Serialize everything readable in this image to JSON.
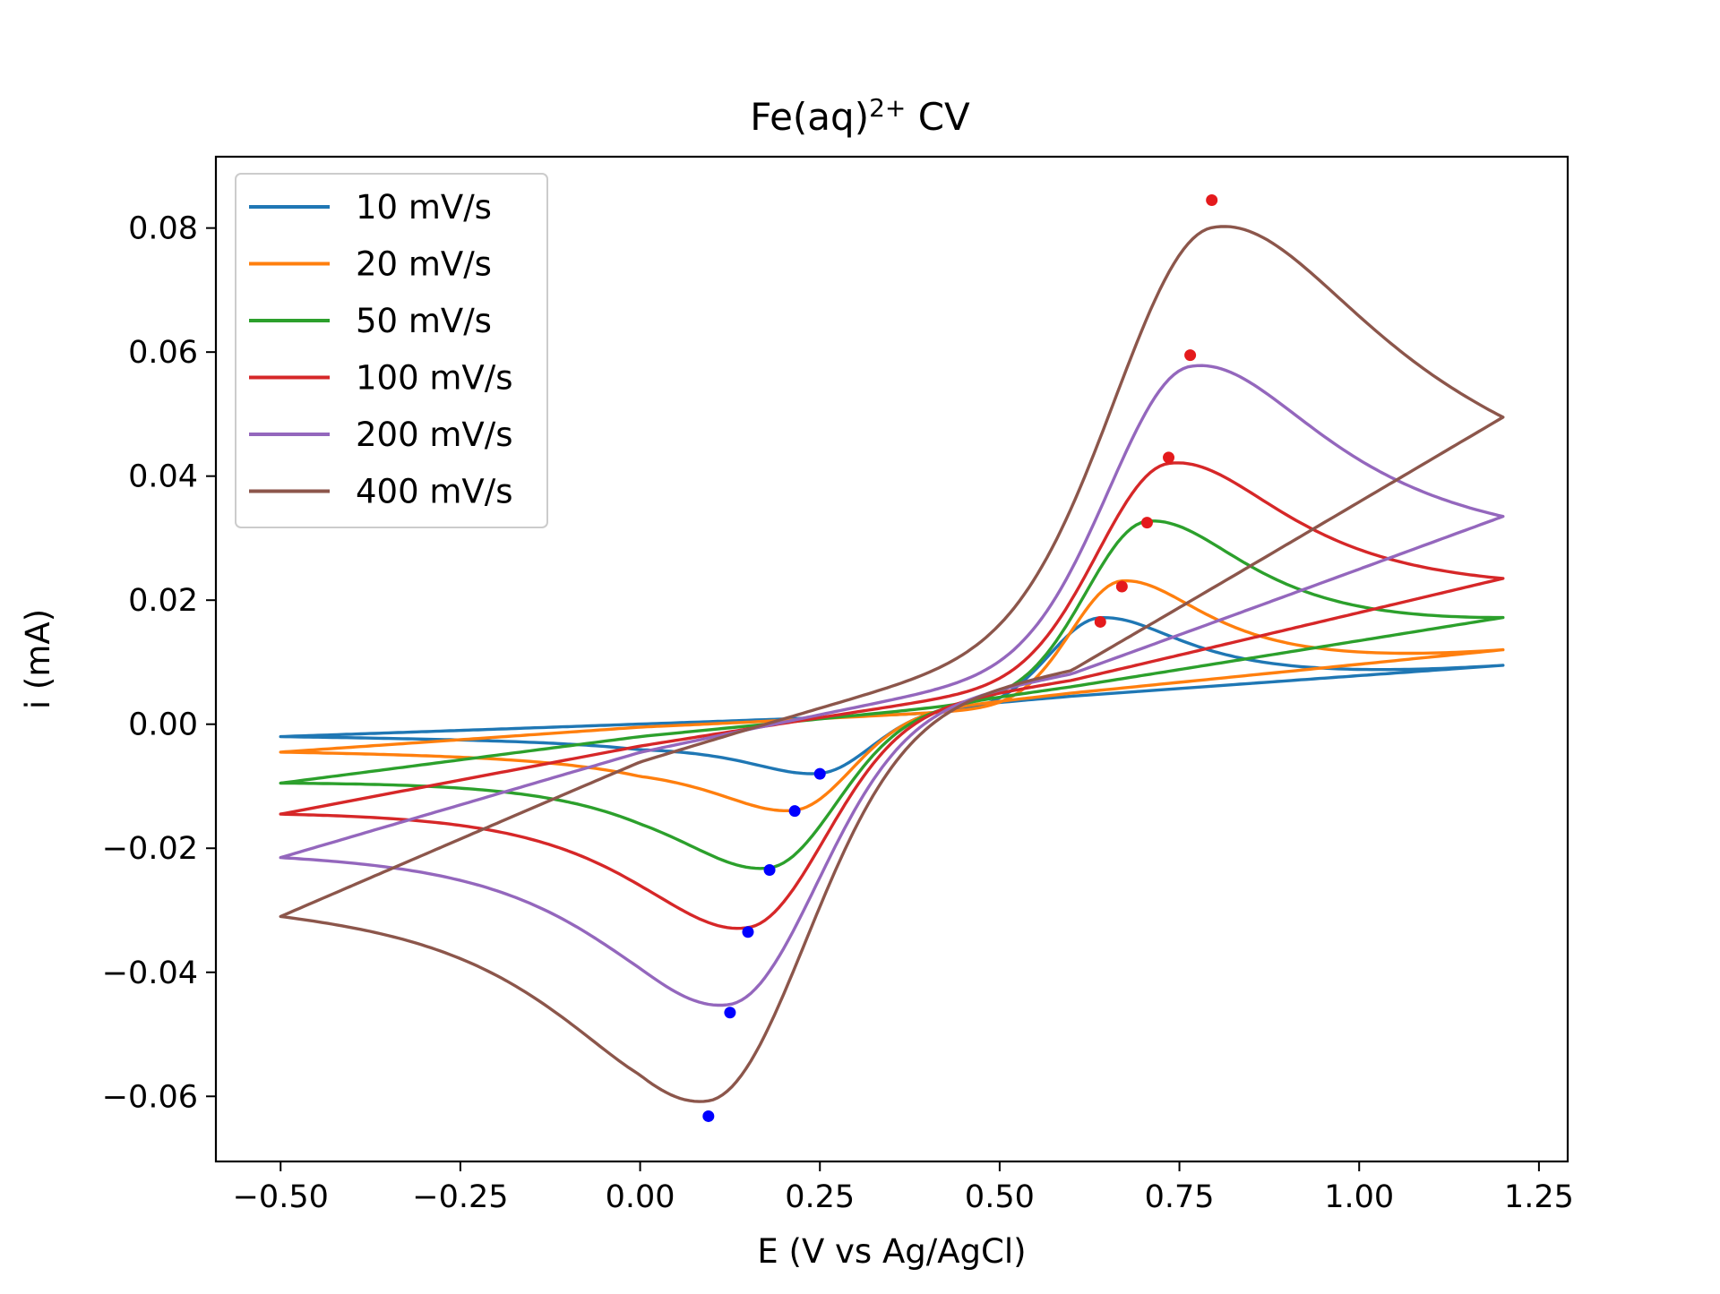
{
  "chart_data": {
    "type": "line",
    "title": "Fe(aq)",
    "title_superscript": "2+",
    "title_suffix": " CV",
    "xlabel": "E (V vs Ag/AgCl)",
    "ylabel": "i (mA)",
    "xlim": [
      -0.59,
      1.29
    ],
    "ylim": [
      -0.0705,
      0.0915
    ],
    "xticks": [
      -0.5,
      -0.25,
      0.0,
      0.25,
      0.5,
      0.75,
      1.0,
      1.25
    ],
    "xtick_labels": [
      "−0.50",
      "−0.25",
      "0.00",
      "0.25",
      "0.50",
      "0.75",
      "1.00",
      "1.25"
    ],
    "yticks": [
      -0.06,
      -0.04,
      -0.02,
      0.0,
      0.02,
      0.04,
      0.06,
      0.08
    ],
    "ytick_labels": [
      "−0.06",
      "−0.04",
      "−0.02",
      "0.00",
      "0.02",
      "0.04",
      "0.06",
      "0.08"
    ],
    "grid": false,
    "legend_position": "top-left",
    "x_range": [
      -0.5,
      1.2
    ],
    "peak_marker_colors": {
      "anodic": "#e41a1c",
      "cathodic": "#0000ff"
    },
    "series": [
      {
        "name": "10 mV/s",
        "color": "#1f77b4",
        "anodic_peak": {
          "x": 0.64,
          "y": 0.0165
        },
        "cathodic_peak": {
          "x": 0.25,
          "y": -0.008
        },
        "anodic_end": 0.0095,
        "cathodic_start": -0.002,
        "anodic_sigma": 0.1,
        "cathodic_sigma": 0.1,
        "anodic_plateau": 0.0,
        "forward_baseline": [
          [
            -0.5,
            -0.002
          ],
          [
            0.0,
            0.0
          ],
          [
            0.4,
            0.0015
          ]
        ],
        "reverse_baseline": [
          [
            1.2,
            0.0095
          ],
          [
            0.6,
            0.0045
          ],
          [
            0.0,
            -0.0015
          ],
          [
            -0.5,
            -0.0022
          ]
        ]
      },
      {
        "name": "20 mV/s",
        "color": "#ff7f0e",
        "anodic_peak": {
          "x": 0.67,
          "y": 0.0222
        },
        "cathodic_peak": {
          "x": 0.215,
          "y": -0.014
        },
        "anodic_end": 0.012,
        "cathodic_start": -0.0045,
        "anodic_sigma": 0.1,
        "cathodic_sigma": 0.11,
        "anodic_plateau": 0.0,
        "forward_baseline": [
          [
            -0.5,
            -0.0045
          ],
          [
            0.0,
            -0.0005
          ],
          [
            0.4,
            0.0015
          ]
        ],
        "reverse_baseline": [
          [
            1.2,
            0.012
          ],
          [
            0.6,
            0.005
          ],
          [
            0.0,
            -0.003
          ],
          [
            -0.5,
            -0.0045
          ]
        ]
      },
      {
        "name": "50 mV/s",
        "color": "#2ca02c",
        "anodic_peak": {
          "x": 0.705,
          "y": 0.0325
        },
        "cathodic_peak": {
          "x": 0.18,
          "y": -0.0235
        },
        "anodic_end": 0.0172,
        "cathodic_start": -0.0095,
        "anodic_sigma": 0.12,
        "cathodic_sigma": 0.13,
        "anodic_plateau": 0.0,
        "forward_baseline": [
          [
            -0.5,
            -0.0095
          ],
          [
            0.0,
            -0.002
          ],
          [
            0.4,
            0.0025
          ]
        ],
        "reverse_baseline": [
          [
            1.2,
            0.0172
          ],
          [
            0.6,
            0.006
          ],
          [
            0.0,
            -0.004
          ],
          [
            -0.5,
            -0.0095
          ]
        ]
      },
      {
        "name": "100 mV/s",
        "color": "#d62728",
        "anodic_peak": {
          "x": 0.735,
          "y": 0.043
        },
        "cathodic_peak": {
          "x": 0.15,
          "y": -0.0335
        },
        "anodic_end": 0.0235,
        "cathodic_start": -0.0145,
        "anodic_sigma": 0.14,
        "cathodic_sigma": 0.15,
        "anodic_plateau": 0.0,
        "forward_baseline": [
          [
            -0.5,
            -0.0145
          ],
          [
            0.0,
            -0.0035
          ],
          [
            0.4,
            0.004
          ]
        ],
        "reverse_baseline": [
          [
            1.2,
            0.0235
          ],
          [
            0.6,
            0.007
          ],
          [
            0.0,
            -0.005
          ],
          [
            -0.5,
            -0.0145
          ]
        ]
      },
      {
        "name": "200 mV/s",
        "color": "#9467bd",
        "anodic_peak": {
          "x": 0.765,
          "y": 0.0595
        },
        "cathodic_peak": {
          "x": 0.125,
          "y": -0.0465
        },
        "anodic_end": 0.0335,
        "cathodic_start": -0.0215,
        "anodic_sigma": 0.16,
        "cathodic_sigma": 0.17,
        "anodic_plateau": 0.0,
        "forward_baseline": [
          [
            -0.5,
            -0.0215
          ],
          [
            0.0,
            -0.0045
          ],
          [
            0.4,
            0.0055
          ]
        ],
        "reverse_baseline": [
          [
            1.2,
            0.0335
          ],
          [
            0.6,
            0.008
          ],
          [
            0.0,
            -0.0065
          ],
          [
            -0.5,
            -0.0215
          ]
        ]
      },
      {
        "name": "400 mV/s",
        "color": "#8c564b",
        "anodic_peak": {
          "x": 0.795,
          "y": 0.0845
        },
        "cathodic_peak": {
          "x": 0.095,
          "y": -0.0632
        },
        "anodic_end": 0.0495,
        "cathodic_start": -0.031,
        "anodic_sigma": 0.19,
        "cathodic_sigma": 0.19,
        "anodic_plateau": 0.0025,
        "forward_baseline": [
          [
            -0.5,
            -0.031
          ],
          [
            0.0,
            -0.006
          ],
          [
            0.4,
            0.0085
          ]
        ],
        "reverse_baseline": [
          [
            1.2,
            0.0495
          ],
          [
            0.6,
            0.0085
          ],
          [
            0.0,
            -0.0075
          ],
          [
            -0.5,
            -0.031
          ]
        ]
      }
    ]
  }
}
